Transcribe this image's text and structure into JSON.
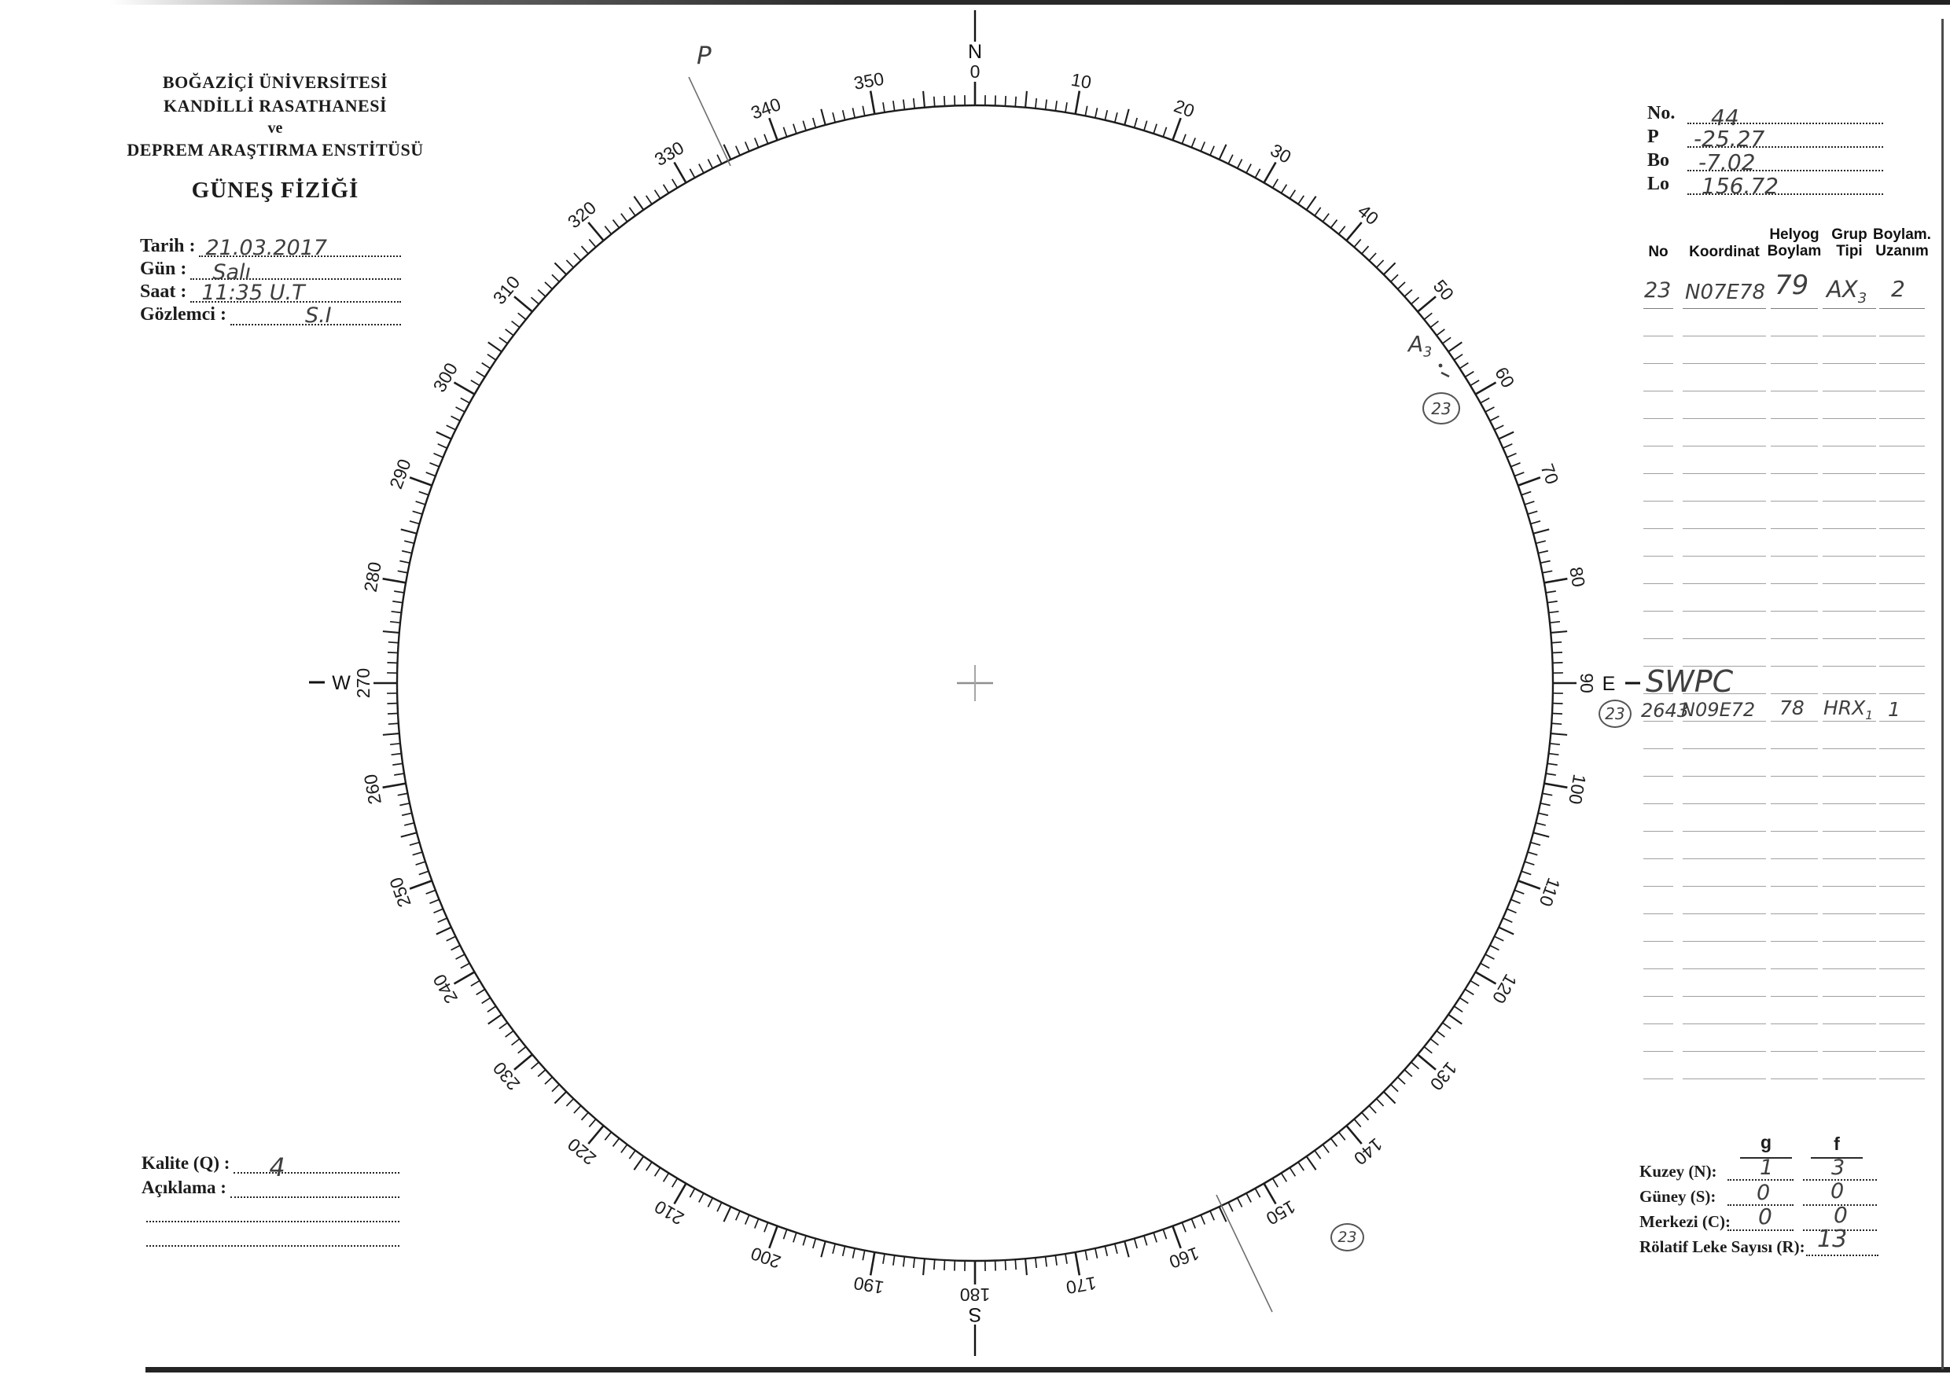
{
  "colors": {
    "ink": "#1c1c1c",
    "pencil": "#3f3f3f",
    "paper": "#ffffff"
  },
  "org": {
    "line1": "BOĞAZİÇİ ÜNİVERSİTESİ",
    "line2": "KANDİLLİ RASATHANESİ",
    "line3": "ve",
    "line4": "DEPREM ARAŞTIRMA ENSTİTÜSÜ",
    "title": "GÜNEŞ FİZİĞİ"
  },
  "meta": {
    "tarih_label": "Tarih :",
    "tarih_value": "21.03.2017",
    "gun_label": "Gün :",
    "gun_value": "Salı",
    "saat_label": "Saat :",
    "saat_value": "11:35  U.T",
    "gozlemci_label": "Gözlemci :",
    "gozlemci_value": "S.I"
  },
  "ephemeris": {
    "no_label": "No.",
    "no_value": "44",
    "p_label": "P",
    "p_value": "-25.27",
    "bo_label": "Bo",
    "bo_value": "-7.02",
    "lo_label": "Lo",
    "lo_value": "156.72"
  },
  "table": {
    "header": {
      "col1": "No",
      "col2": "Koordinat",
      "col3_top": "Helyog",
      "col3_bottom": "Boylam",
      "col4_top": "Grup",
      "col4_bottom": "Tipi",
      "col5_top": "Boylam.",
      "col5_bottom": "Uzanım"
    },
    "row1": {
      "no": "23",
      "koordinat": "N07E78",
      "helyog_boylam": "79",
      "grup_tipi": "AX",
      "grup_tipi_sub": "3",
      "uzanim": "2"
    },
    "swpc_label": "SWPC",
    "swpc_row": {
      "region": "23",
      "no": "2643",
      "koordinat": "N09E72",
      "helyog_boylam": "78",
      "grup_tipi": "HRX",
      "grup_tipi_sub": "1",
      "uzanim": "1"
    }
  },
  "dial": {
    "degree_labels": [
      "0",
      "10",
      "20",
      "30",
      "40",
      "50",
      "60",
      "70",
      "80",
      "90",
      "100",
      "110",
      "120",
      "130",
      "140",
      "150",
      "160",
      "170",
      "180",
      "190",
      "200",
      "210",
      "220",
      "230",
      "240",
      "250",
      "260",
      "270",
      "280",
      "290",
      "300",
      "310",
      "320",
      "330",
      "340",
      "350"
    ],
    "north": "N",
    "east": "E",
    "south": "S",
    "west": "W",
    "p_axis_label": "P"
  },
  "annotations": {
    "active_region": "A",
    "active_region_sub": "3",
    "region_circle_inner": "23",
    "region_circle_outer": "23"
  },
  "quality": {
    "kalite_label": "Kalite (Q) :",
    "kalite_value": "4",
    "aciklama_label": "Açıklama :"
  },
  "counts": {
    "g_header": "g",
    "f_header": "f",
    "kuzey_label": "Kuzey (N):",
    "kuzey_g": "1",
    "kuzey_f": "3",
    "guney_label": "Güney (S):",
    "guney_g": "0",
    "guney_f": "0",
    "merkezi_label": "Merkezi (C):",
    "merkezi_g": "0",
    "merkezi_f": "0",
    "rolatif_label": "Rölatif Leke Sayısı (R):",
    "rolatif_value": "13"
  }
}
